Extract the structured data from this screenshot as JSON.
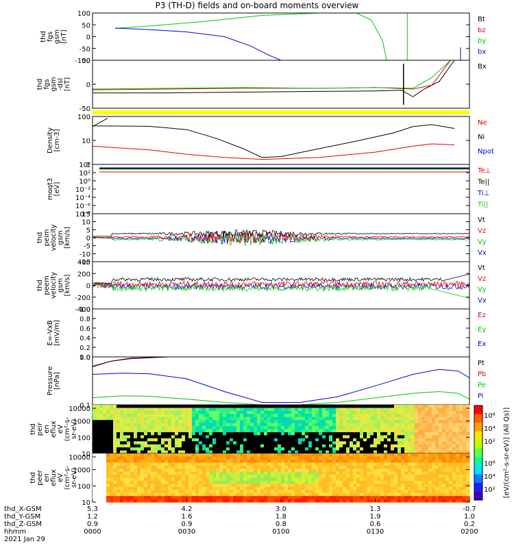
{
  "title": "P3 (TH-D) fields and on-board moments overview",
  "colors": {
    "black": "#000000",
    "red": "#e00000",
    "green": "#00c800",
    "blue": "#0000d8",
    "yellow": "#ffff00"
  },
  "chart_data": [
    {
      "type": "line",
      "panel": "fgs_gsm",
      "ylabel": [
        "thd",
        "fgs",
        "gsm",
        "[nT]"
      ],
      "ylim": [
        -100,
        100
      ],
      "yticks": [
        "100",
        "50",
        "0",
        "-50",
        "-100"
      ],
      "legend": [
        {
          "text": "Bt",
          "color": "black"
        },
        {
          "text": "bz",
          "color": "red"
        },
        {
          "text": "by",
          "color": "green"
        },
        {
          "text": "bx",
          "color": "blue"
        }
      ],
      "series": [
        {
          "name": "by",
          "color": "green",
          "x": [
            0.06,
            0.15,
            0.3,
            0.45,
            0.6,
            0.7,
            0.74,
            0.77,
            0.78
          ],
          "y": [
            35,
            45,
            65,
            90,
            100,
            100,
            70,
            -20,
            -100
          ]
        },
        {
          "name": "bx",
          "color": "blue",
          "x": [
            0.06,
            0.15,
            0.25,
            0.35,
            0.42,
            0.47,
            0.5
          ],
          "y": [
            36,
            30,
            20,
            0,
            -40,
            -80,
            -100
          ]
        }
      ]
    },
    {
      "type": "line",
      "panel": "fgs_gsm_dsl",
      "ylabel": [
        "thd",
        "fgs",
        "gsm",
        "-dsl",
        "[nT]"
      ],
      "ylim": [
        -50,
        75
      ],
      "yticks": [
        "50",
        "0",
        "-50"
      ],
      "legend": [
        {
          "text": "Bx",
          "color": "black"
        }
      ],
      "series": [
        {
          "name": "Bx",
          "color": "black",
          "x": [
            0,
            0.2,
            0.4,
            0.6,
            0.75,
            0.82,
            0.85,
            0.88,
            0.92,
            0.96
          ],
          "y": [
            -10,
            -10,
            -8,
            -6,
            -5,
            -3,
            -20,
            0,
            20,
            75
          ]
        },
        {
          "name": "",
          "color": "red",
          "x": [
            0,
            0.2,
            0.4,
            0.6,
            0.75,
            0.85,
            0.9,
            0.95
          ],
          "y": [
            -2,
            0,
            2,
            2,
            4,
            0,
            10,
            75
          ]
        },
        {
          "name": "",
          "color": "green",
          "x": [
            0,
            0.2,
            0.4,
            0.6,
            0.75,
            0.85,
            0.9,
            0.95
          ],
          "y": [
            0,
            2,
            4,
            2,
            4,
            2,
            30,
            75
          ]
        }
      ]
    },
    {
      "type": "line",
      "panel": "density",
      "ylabel": [
        "Density",
        "[cm-3]"
      ],
      "ylim": [
        0.1,
        200
      ],
      "log": true,
      "yticks": [
        "100",
        "10",
        "1"
      ],
      "legend": [
        {
          "text": "Ne",
          "color": "red"
        },
        {
          "text": "Ni",
          "color": "black"
        },
        {
          "text": "Npot",
          "color": "blue"
        }
      ],
      "series": [
        {
          "name": "Ni",
          "color": "black",
          "x": [
            0,
            0.15,
            0.25,
            0.33,
            0.4,
            0.45,
            0.5,
            0.6,
            0.7,
            0.8,
            0.85,
            0.9,
            0.96
          ],
          "y": [
            45,
            42,
            25,
            6,
            1.2,
            0.3,
            0.35,
            1.2,
            4,
            15,
            40,
            55,
            30
          ]
        },
        {
          "name": "Ne",
          "color": "red",
          "x": [
            0,
            0.15,
            0.25,
            0.35,
            0.45,
            0.6,
            0.75,
            0.85,
            0.9,
            0.96
          ],
          "y": [
            1.8,
            1.0,
            0.5,
            0.3,
            0.22,
            0.3,
            0.7,
            1.8,
            2.6,
            2.2
          ]
        },
        {
          "name": "",
          "color": "black",
          "x": [
            0,
            0.04
          ],
          "y": [
            40,
            150
          ]
        }
      ]
    },
    {
      "type": "line",
      "panel": "moqt3",
      "ylabel": [
        "moqt3",
        "[eV]"
      ],
      "ylim": [
        1,
        10000000000.0
      ],
      "log": true,
      "yticks": [
        "10⁴",
        "10²",
        "10⁰",
        "10⁻²",
        "10⁻⁴",
        "10⁻⁶",
        "10⁻⁸"
      ],
      "legend": [
        {
          "text": "Te⊥",
          "color": "red"
        },
        {
          "text": "Te||",
          "color": "black"
        },
        {
          "text": "Ti⊥",
          "color": "blue"
        },
        {
          "text": "Ti||",
          "color": "green"
        }
      ],
      "series": []
    },
    {
      "type": "line",
      "panel": "peim_velocity",
      "ylabel": [
        "thd",
        "peim",
        "velocity",
        "gsm",
        "[km/s]"
      ],
      "ylim": [
        -15,
        15
      ],
      "yticks": [
        "15",
        "10",
        "5",
        "0",
        "-5",
        "-10",
        "-15"
      ],
      "legend": [
        {
          "text": "Vt",
          "color": "black"
        },
        {
          "text": "Vz",
          "color": "red"
        },
        {
          "text": "Vy",
          "color": "green"
        },
        {
          "text": "Vx",
          "color": "blue"
        }
      ],
      "series": []
    },
    {
      "type": "line",
      "panel": "peem_velocity",
      "ylabel": [
        "thd",
        "peem",
        "velocity",
        "gsm",
        "[km/s]"
      ],
      "ylim": [
        -400,
        400
      ],
      "yticks": [
        "400",
        "200",
        "0",
        "-200",
        "-400"
      ],
      "legend": [
        {
          "text": "Vt",
          "color": "black"
        },
        {
          "text": "Vz",
          "color": "red"
        },
        {
          "text": "Vy",
          "color": "green"
        },
        {
          "text": "Vx",
          "color": "blue"
        }
      ],
      "series": []
    },
    {
      "type": "line",
      "panel": "efield",
      "ylabel": [
        "E=-VxB",
        "[mV/m]"
      ],
      "ylim": [
        0,
        1
      ],
      "yticks": [
        "1.0",
        "0.8",
        "0.6",
        "0.4",
        "0.2",
        "0.0"
      ],
      "legend": [
        {
          "text": "Ez",
          "color": "red"
        },
        {
          "text": "Ey",
          "color": "green"
        },
        {
          "text": "Ex",
          "color": "blue"
        }
      ],
      "series": []
    },
    {
      "type": "line",
      "panel": "pressure",
      "ylabel": [
        "Pressure",
        "[nPa]"
      ],
      "ylim": [
        0.03,
        10
      ],
      "log": true,
      "yticks": [
        "1.0",
        "0.1"
      ],
      "legend": [
        {
          "text": "Pt",
          "color": "black"
        },
        {
          "text": "Pb",
          "color": "red"
        },
        {
          "text": "Pe",
          "color": "green"
        },
        {
          "text": "Pi",
          "color": "blue"
        }
      ],
      "series": [
        {
          "name": "Pb",
          "color": "red",
          "x": [
            0,
            0.05,
            0.1,
            0.2,
            0.3
          ],
          "y": [
            3,
            6,
            8,
            10,
            10
          ]
        },
        {
          "name": "Pt",
          "color": "black",
          "x": [
            0,
            0.05,
            0.1,
            0.2,
            0.3
          ],
          "y": [
            3.2,
            6,
            8.5,
            10,
            10
          ]
        },
        {
          "name": "Pi",
          "color": "blue",
          "x": [
            0,
            0.08,
            0.15,
            0.25,
            0.35,
            0.45,
            0.55,
            0.65,
            0.75,
            0.85,
            0.92,
            0.97,
            1.0
          ],
          "y": [
            1.2,
            1.4,
            1.3,
            0.7,
            0.15,
            0.04,
            0.04,
            0.08,
            0.3,
            1.2,
            2.2,
            1.8,
            0.8
          ]
        },
        {
          "name": "Pe",
          "color": "green",
          "x": [
            0,
            0.08,
            0.15,
            0.25,
            0.35,
            0.45,
            0.55,
            0.65,
            0.75,
            0.85,
            0.92,
            0.97,
            1.0
          ],
          "y": [
            0.07,
            0.09,
            0.085,
            0.06,
            0.04,
            0.03,
            0.03,
            0.04,
            0.07,
            0.12,
            0.15,
            0.12,
            0.06
          ]
        }
      ]
    },
    {
      "type": "heatmap",
      "panel": "peir_eflux",
      "ylabel": [
        "thd",
        "peir",
        "en",
        "eflux",
        "eV",
        "(cm²-s-",
        "sr-eV)"
      ],
      "ylim": [
        5,
        20000
      ],
      "log": true,
      "yticks": [
        "10000",
        "1000",
        "100",
        "10"
      ]
    },
    {
      "type": "heatmap",
      "panel": "peer_eflux",
      "ylabel": [
        "thd",
        "peer",
        "en",
        "eflux",
        "eV",
        "(cm²-s-",
        "sr-eV)"
      ],
      "ylim": [
        5,
        20000
      ],
      "log": true,
      "yticks": [
        "10000",
        "1000",
        "100",
        "10"
      ]
    }
  ],
  "colorbar": {
    "title": "[eV/(cm²-s-sr-eV)] (All Qs)]",
    "ticks_top": [
      "10⁶",
      "10⁴",
      "10²"
    ],
    "ticks_bottom": [
      "10⁶",
      "10⁴",
      "10²"
    ]
  },
  "xaxis": {
    "row_labels": [
      "thd_X-GSM",
      "thd_Y-GSM",
      "thd_Z-GSM",
      "hhmm",
      "2021 Jan 29"
    ],
    "columns": [
      {
        "values": [
          "5.3",
          "1.2",
          "0.9",
          "0000"
        ]
      },
      {
        "values": [
          "4.2",
          "1.6",
          "0.9",
          "0030"
        ]
      },
      {
        "values": [
          "3.0",
          "1.8",
          "0.8",
          "0100"
        ]
      },
      {
        "values": [
          "1.3",
          "1.9",
          "0.6",
          "0130"
        ]
      },
      {
        "values": [
          "-0.7",
          "1.0",
          "0.2",
          "0200"
        ]
      }
    ]
  }
}
